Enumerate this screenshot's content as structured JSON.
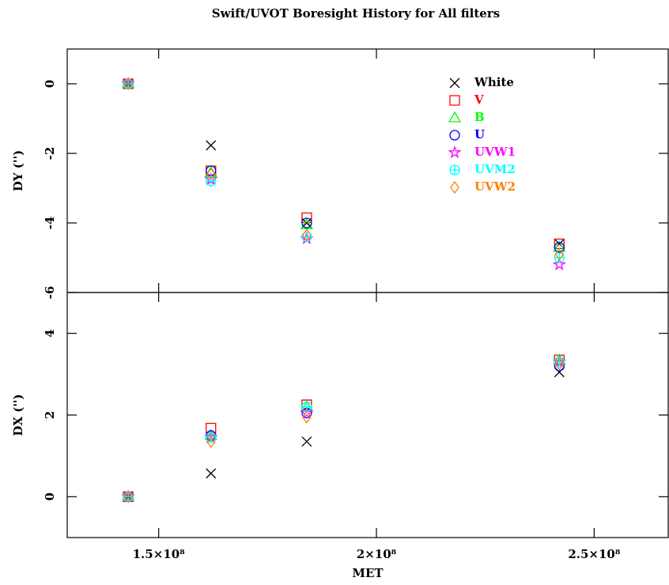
{
  "chart_data": {
    "type": "scatter",
    "title": "Swift/UVOT Boresight History for All filters",
    "xlabel": "MET",
    "x": [
      143000000,
      162000000,
      184000000,
      242000000
    ],
    "xlim": [
      129000000,
      267000000
    ],
    "xticks": [
      {
        "value": 150000000,
        "label": "1.5×10⁸"
      },
      {
        "value": 200000000,
        "label": "2×10⁸"
      },
      {
        "value": 250000000,
        "label": "2.5×10⁸"
      }
    ],
    "panels": [
      {
        "ylabel": "DY ('')",
        "ylim": [
          -6,
          1
        ],
        "yticks": [
          -6,
          -4,
          -2,
          0
        ]
      },
      {
        "ylabel": "DX ('')",
        "ylim": [
          -1,
          5
        ],
        "yticks": [
          0,
          2,
          4
        ]
      }
    ],
    "series": [
      {
        "name": "White",
        "color": "#000000",
        "marker": "cross",
        "dy": [
          0,
          -1.77,
          -4.0,
          -4.6
        ],
        "dx": [
          0,
          0.57,
          1.35,
          3.05
        ]
      },
      {
        "name": "V",
        "color": "#ff0000",
        "marker": "square",
        "dy": [
          0,
          -2.5,
          -3.85,
          -4.6
        ],
        "dx": [
          0,
          1.68,
          2.25,
          3.35
        ]
      },
      {
        "name": "B",
        "color": "#00ff00",
        "marker": "triangle",
        "dy": [
          0,
          -2.55,
          -4.05,
          -4.7
        ],
        "dx": [
          0,
          1.5,
          2.2,
          3.35
        ]
      },
      {
        "name": "U",
        "color": "#0000ff",
        "marker": "circle",
        "dy": [
          0,
          -2.5,
          -4.0,
          -4.7
        ],
        "dx": [
          0,
          1.5,
          2.05,
          3.2
        ]
      },
      {
        "name": "UVW1",
        "color": "#ff00ff",
        "marker": "star",
        "dy": [
          0,
          -2.75,
          -4.45,
          -5.2
        ],
        "dx": [
          0,
          1.45,
          2.05,
          3.3
        ]
      },
      {
        "name": "UVM2",
        "color": "#00ffff",
        "marker": "circleplus",
        "dy": [
          0,
          -2.8,
          -4.4,
          -5.0
        ],
        "dx": [
          0,
          1.45,
          2.2,
          3.3
        ]
      },
      {
        "name": "UVW2",
        "color": "#ff8000",
        "marker": "diamond",
        "dy": [
          0,
          -2.6,
          -4.35,
          -4.9
        ],
        "dx": [
          0,
          1.35,
          1.95,
          3.25
        ]
      }
    ]
  }
}
